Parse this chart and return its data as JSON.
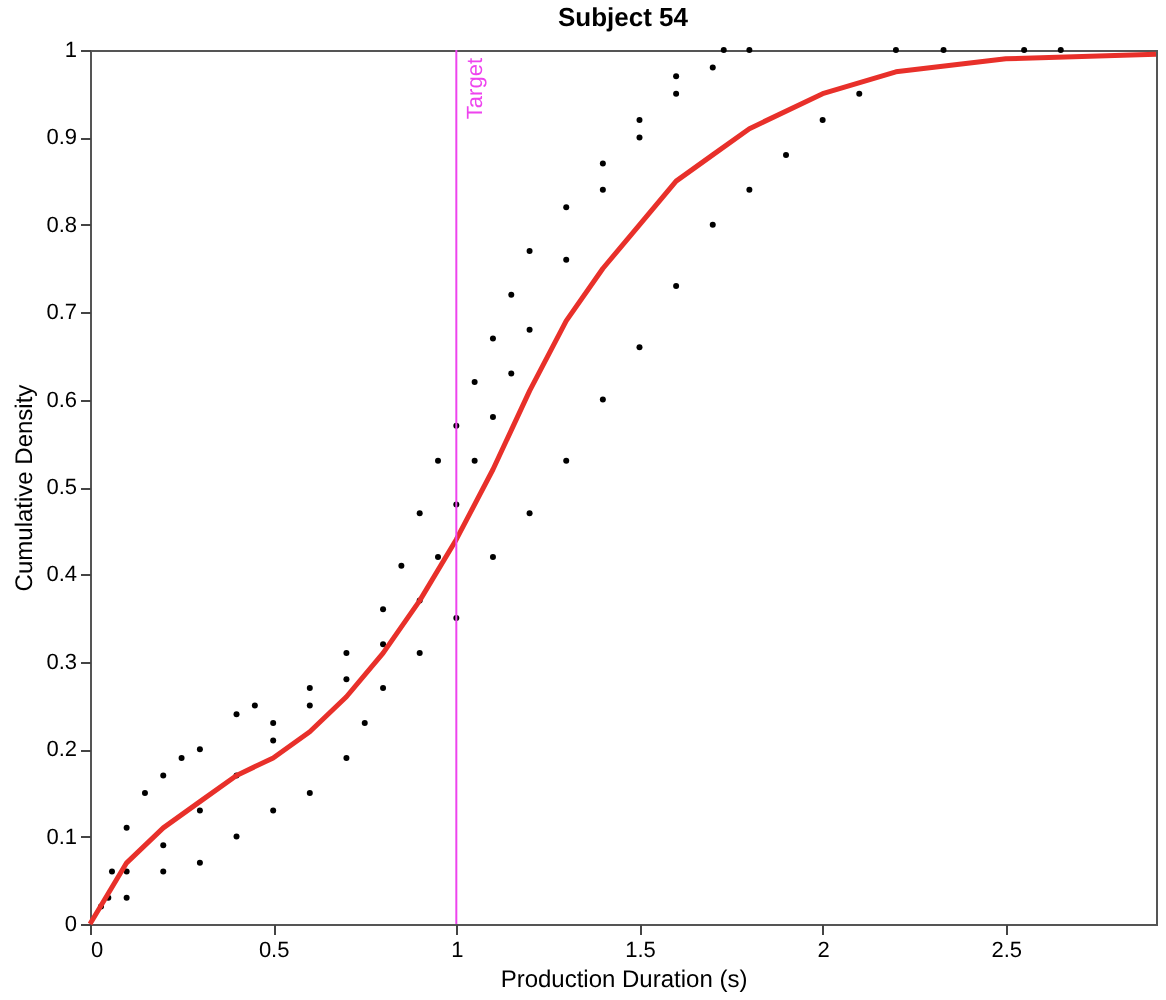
{
  "chart_data": {
    "type": "scatter",
    "title": "Subject 54",
    "xlabel": "Production Duration (s)",
    "ylabel": "Cumulative Density",
    "xlim": [
      0,
      2.91
    ],
    "xticks": [
      0,
      0.5,
      1,
      1.5,
      2,
      2.5
    ],
    "ylim": [
      0,
      1
    ],
    "yticks": [
      0,
      0.1,
      0.2,
      0.3,
      0.4,
      0.5,
      0.6,
      0.7,
      0.8,
      0.9,
      1
    ],
    "grid": false,
    "marker": "circle",
    "series": [
      {
        "color": "#000000",
        "x": [
          0.03,
          0.06,
          0.1,
          0.15,
          0.2,
          0.25,
          0.3,
          0.4,
          0.45,
          0.5,
          0.6,
          0.7,
          0.8,
          0.85,
          0.9,
          0.95,
          1.0,
          1.05,
          1.1,
          1.15,
          1.2,
          1.3,
          1.4,
          1.5,
          1.6,
          1.73,
          0.05,
          0.1,
          0.2,
          0.3,
          0.4,
          0.5,
          0.6,
          0.7,
          0.8,
          0.9,
          0.95,
          1.0,
          1.05,
          1.1,
          1.15,
          1.2,
          1.3,
          1.4,
          1.5,
          1.6,
          1.7,
          1.8,
          0.1,
          0.2,
          0.3,
          0.4,
          0.5,
          0.6,
          0.7,
          0.75,
          0.8,
          0.9,
          1.0,
          1.1,
          1.2,
          1.3,
          1.4,
          1.5,
          1.6,
          1.7,
          1.8,
          1.9,
          2.0,
          2.1,
          2.2,
          2.33,
          2.55,
          2.65
        ],
        "values": [
          0.02,
          0.06,
          0.11,
          0.15,
          0.17,
          0.19,
          0.2,
          0.24,
          0.25,
          0.23,
          0.27,
          0.31,
          0.36,
          0.41,
          0.47,
          0.53,
          0.57,
          0.62,
          0.67,
          0.72,
          0.77,
          0.82,
          0.87,
          0.92,
          0.97,
          1.0,
          0.03,
          0.06,
          0.09,
          0.13,
          0.17,
          0.21,
          0.25,
          0.28,
          0.32,
          0.37,
          0.42,
          0.48,
          0.53,
          0.58,
          0.63,
          0.68,
          0.76,
          0.84,
          0.9,
          0.95,
          0.98,
          1.0,
          0.03,
          0.06,
          0.07,
          0.1,
          0.13,
          0.15,
          0.19,
          0.23,
          0.27,
          0.31,
          0.35,
          0.42,
          0.47,
          0.53,
          0.6,
          0.66,
          0.73,
          0.8,
          0.84,
          0.88,
          0.92,
          0.95,
          1.0,
          1.0,
          1.0,
          1.0
        ]
      },
      {
        "type": "line",
        "color": "#e8302a",
        "marker": "none",
        "x": [
          0,
          0.1,
          0.2,
          0.3,
          0.4,
          0.5,
          0.6,
          0.7,
          0.8,
          0.9,
          1.0,
          1.1,
          1.2,
          1.3,
          1.4,
          1.5,
          1.6,
          1.7,
          1.8,
          2.0,
          2.2,
          2.5,
          2.91
        ],
        "values": [
          0,
          0.07,
          0.11,
          0.14,
          0.17,
          0.19,
          0.22,
          0.26,
          0.31,
          0.37,
          0.44,
          0.52,
          0.61,
          0.69,
          0.75,
          0.8,
          0.85,
          0.88,
          0.91,
          0.95,
          0.975,
          0.99,
          0.995
        ]
      }
    ],
    "ref_lines": [
      {
        "axis": "x",
        "value": 1,
        "label": "Target",
        "color": "#ee44ee"
      }
    ]
  }
}
